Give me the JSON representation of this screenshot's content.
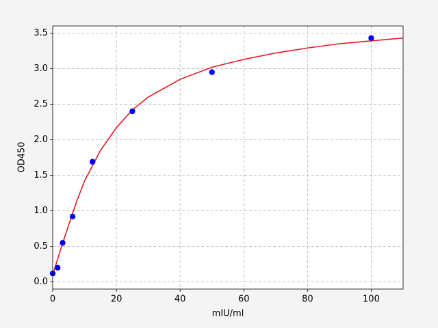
{
  "chart_data": {
    "type": "scatter",
    "xlabel": "mIU/ml",
    "ylabel": "OD450",
    "xlim": [
      0,
      110
    ],
    "ylim": [
      -0.1,
      3.6
    ],
    "xticks": [
      0,
      20,
      40,
      60,
      80,
      100
    ],
    "yticks": [
      {
        "value": 0,
        "label": "0.0"
      },
      0.5,
      {
        "value": 1,
        "label": "1.0"
      },
      1.5,
      {
        "value": 2,
        "label": "2.0"
      },
      2.5,
      {
        "value": 3,
        "label": "3.0"
      },
      3.5
    ],
    "grid": true,
    "series": [
      {
        "type": "line",
        "color": "#e31a1c",
        "x": [
          0,
          2.5,
          5,
          7.5,
          10,
          15,
          20,
          25,
          30,
          40,
          50,
          60,
          70,
          80,
          90,
          100,
          110
        ],
        "values": [
          0.1,
          0.46,
          0.8,
          1.13,
          1.42,
          1.85,
          2.17,
          2.42,
          2.6,
          2.85,
          3.02,
          3.13,
          3.22,
          3.29,
          3.35,
          3.39,
          3.43
        ]
      },
      {
        "type": "scatter",
        "color": "#0000ff",
        "x": [
          0,
          1.56,
          3.125,
          6.25,
          12.5,
          25,
          50,
          100
        ],
        "values": [
          0.12,
          0.2,
          0.55,
          0.92,
          1.69,
          2.4,
          2.95,
          3.43
        ]
      }
    ]
  }
}
